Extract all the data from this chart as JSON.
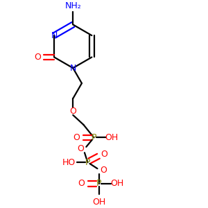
{
  "bg_color": "#ffffff",
  "black": "#000000",
  "blue": "#0000ff",
  "red": "#ff0000",
  "olive": "#808000",
  "figsize": [
    3.0,
    3.0
  ],
  "dpi": 100,
  "xlim": [
    0,
    10
  ],
  "ylim": [
    0,
    10
  ]
}
